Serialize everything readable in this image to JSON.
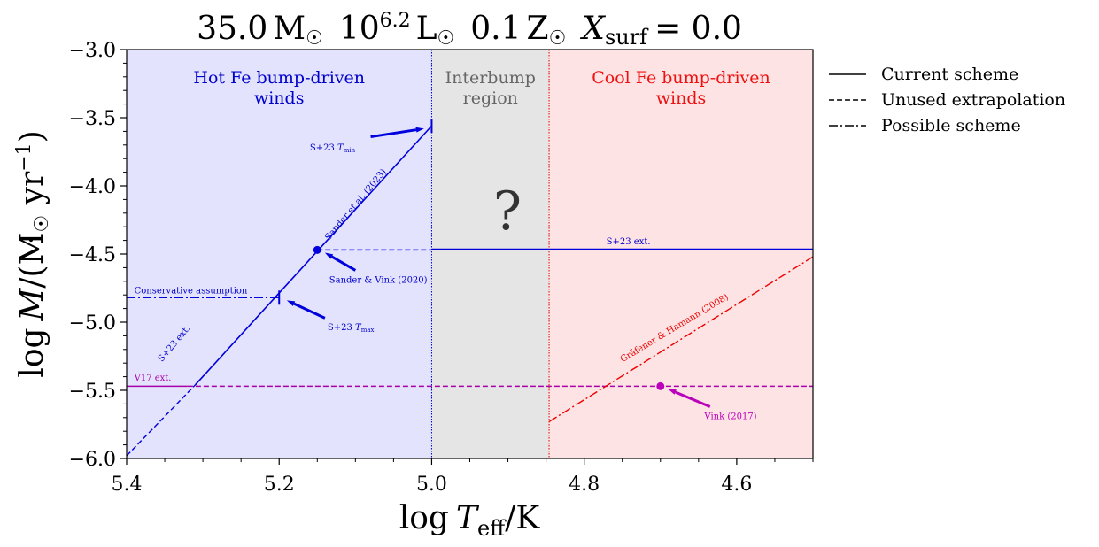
{
  "chart_data": {
    "type": "line",
    "title": "35.0 M⊙  10^6.2 L⊙  0.1 Z⊙  X_surf = 0.0",
    "title_parts": {
      "mass": "35.0",
      "msun": "M",
      "lum_base": "10",
      "lum_exp": "6.2",
      "lsun": "L",
      "metal": "0.1",
      "zsun": "Z",
      "x_label": "X",
      "x_sub": "surf",
      "x_eq": "= 0.0"
    },
    "xlabel": "log T_eff/K",
    "ylabel": "log Ṁ/(M⊙ yr⁻¹)",
    "xlabel_parts": {
      "log": "log",
      "T": "T",
      "sub": "eff",
      "unit": "/K"
    },
    "ylabel_parts": {
      "log": "log",
      "M": "M",
      "mid": "/(M",
      "yr": " yr",
      "exp": "−1",
      "close": ")"
    },
    "xlim": [
      5.4,
      4.5
    ],
    "ylim": [
      -6.0,
      -3.0
    ],
    "xticks": [
      5.4,
      5.2,
      5.0,
      4.8,
      4.6
    ],
    "xtick_labels": [
      "5.4",
      "5.2",
      "5.0",
      "4.8",
      "4.6"
    ],
    "yticks": [
      -6.0,
      -5.5,
      -5.0,
      -4.5,
      -4.0,
      -3.5,
      -3.0
    ],
    "ytick_labels": [
      "−6.0",
      "−5.5",
      "−5.0",
      "−4.5",
      "−4.0",
      "−3.5",
      "−3.0"
    ],
    "regions": [
      {
        "name": "Hot Fe bump-driven winds",
        "lines": [
          "Hot Fe bump-driven",
          "winds"
        ],
        "x_range": [
          5.4,
          5.0
        ],
        "fill": "#e3e3fd",
        "text_color": "#0000cc"
      },
      {
        "name": "Interbump region",
        "lines": [
          "Interbump",
          "region"
        ],
        "x_range": [
          5.0,
          4.846
        ],
        "fill": "#e5e5e5",
        "text_color": "#666666"
      },
      {
        "name": "Cool Fe bump-driven winds",
        "lines": [
          "Cool Fe bump-driven",
          "winds"
        ],
        "x_range": [
          4.846,
          4.5
        ],
        "fill": "#fde3e3",
        "text_color": "#ee1111"
      }
    ],
    "boundaries": [
      {
        "x": 5.0,
        "color": "#0000dd"
      },
      {
        "x": 4.846,
        "color": "#dd0000"
      }
    ],
    "question_mark": "?",
    "series": [
      {
        "style": "solid",
        "color": "#0000dd",
        "points": [
          [
            5.31,
            -5.46
          ],
          [
            5.0,
            -3.56
          ]
        ]
      },
      {
        "style": "dashed",
        "color": "#0000dd",
        "points": [
          [
            5.4,
            -5.98
          ],
          [
            5.31,
            -5.46
          ]
        ]
      },
      {
        "style": "dashed",
        "color": "#0000dd",
        "points": [
          [
            5.15,
            -4.47
          ],
          [
            5.0,
            -4.47
          ]
        ]
      },
      {
        "style": "solid",
        "color": "#0000dd",
        "points": [
          [
            5.0,
            -4.465
          ],
          [
            4.5,
            -4.465
          ]
        ]
      },
      {
        "style": "dashdot",
        "color": "#0000dd",
        "points": [
          [
            5.4,
            -4.82
          ],
          [
            5.2,
            -4.82
          ]
        ]
      },
      {
        "style": "solid",
        "color": "#aa00aa",
        "points": [
          [
            5.4,
            -5.47
          ],
          [
            5.32,
            -5.47
          ]
        ]
      },
      {
        "style": "dashed",
        "color": "#aa00aa",
        "points": [
          [
            5.32,
            -5.47
          ],
          [
            4.5,
            -5.47
          ]
        ]
      },
      {
        "style": "dashdot",
        "color": "#ee0000",
        "points": [
          [
            4.846,
            -5.73
          ],
          [
            4.5,
            -4.52
          ]
        ]
      }
    ],
    "points": [
      {
        "x": 5.15,
        "y": -4.47,
        "color": "#0000dd"
      },
      {
        "x": 4.7,
        "y": -5.47,
        "color": "#bb00bb"
      }
    ],
    "ticks_marks": [
      {
        "x": 5.0,
        "y": -3.56,
        "color": "#0000dd"
      },
      {
        "x": 5.2,
        "y": -4.82,
        "color": "#0000dd"
      }
    ],
    "arrows": [
      {
        "from": [
          5.08,
          -3.64
        ],
        "to": [
          5.01,
          -3.58
        ],
        "color": "#0000dd"
      },
      {
        "from": [
          5.1,
          -4.62
        ],
        "to": [
          5.14,
          -4.49
        ],
        "color": "#0000dd"
      },
      {
        "from": [
          5.14,
          -4.97
        ],
        "to": [
          5.19,
          -4.84
        ],
        "color": "#0000dd"
      },
      {
        "from": [
          4.635,
          -5.62
        ],
        "to": [
          4.69,
          -5.49
        ],
        "color": "#bb00bb"
      }
    ],
    "annotations": [
      {
        "text": "S+23 Tmin",
        "main": "S+23 ",
        "italic": "T",
        "sub": "min",
        "x": 5.13,
        "y": -3.74,
        "color": "#0000cc",
        "anchor": "middle",
        "rotate": 0,
        "size": 10
      },
      {
        "text": "Sander et al. (2023)",
        "x": 5.097,
        "y": -4.15,
        "color": "#0000cc",
        "anchor": "middle",
        "rotate": -50,
        "size": 10
      },
      {
        "text": "Sander & Vink (2020)",
        "x": 5.07,
        "y": -4.71,
        "color": "#0000cc",
        "anchor": "middle",
        "rotate": 0,
        "size": 10
      },
      {
        "text": "Conservative assumption",
        "x": 5.39,
        "y": -4.79,
        "color": "#0000cc",
        "anchor": "start",
        "rotate": 0,
        "size": 10
      },
      {
        "text": "S+23 Tmax",
        "main": "S+23 ",
        "italic": "T",
        "sub": "max",
        "x": 5.106,
        "y": -5.06,
        "color": "#0000cc",
        "anchor": "middle",
        "rotate": 0,
        "size": 10
      },
      {
        "text": "S+23 ext.",
        "x": 5.335,
        "y": -5.17,
        "color": "#0000cc",
        "anchor": "middle",
        "rotate": -50,
        "size": 10
      },
      {
        "text": "S+23 ext.",
        "x": 4.742,
        "y": -4.43,
        "color": "#0000cc",
        "anchor": "middle",
        "rotate": 0,
        "size": 10
      },
      {
        "text": "V17 ext.",
        "x": 5.39,
        "y": -5.43,
        "color": "#aa00aa",
        "anchor": "start",
        "rotate": 0,
        "size": 10
      },
      {
        "text": "Gräfener & Hamann (2008)",
        "x": 4.68,
        "y": -5.06,
        "color": "#ee0000",
        "anchor": "middle",
        "rotate": -31,
        "size": 10
      },
      {
        "text": "Vink (2017)",
        "x": 4.608,
        "y": -5.71,
        "color": "#bb00bb",
        "anchor": "middle",
        "rotate": 0,
        "size": 10
      }
    ],
    "legend": {
      "placement": "outside-top-right",
      "entries": [
        {
          "label": "Current scheme",
          "style": "solid"
        },
        {
          "label": "Unused extrapolation",
          "style": "dashed"
        },
        {
          "label": "Possible scheme",
          "style": "dashdot"
        }
      ]
    },
    "grid": false
  }
}
